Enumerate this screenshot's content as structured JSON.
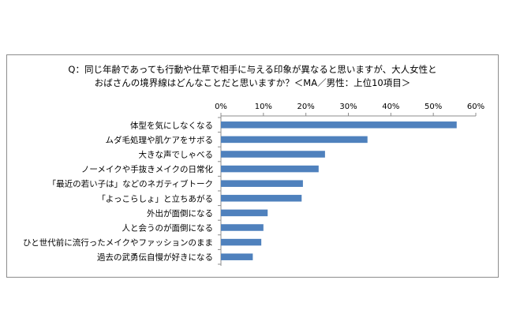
{
  "chart_data": {
    "type": "bar",
    "orientation": "horizontal",
    "title_line1": "Q：同じ年齢であっても行動や仕草で相手に与える印象が異なると思いますが、大人女性と",
    "title_line2": "おばさんの境界線はどんなことだと思いますか？＜MA／男性：上位10項目＞",
    "categories": [
      "体型を気にしなくなる",
      "ムダ毛処理や肌ケアをサボる",
      "大きな声でしゃべる",
      "ノーメイクや手抜きメイクの日常化",
      "「最近の若い子は」などのネガティブトーク",
      "「よっこらしょ」と立ちあがる",
      "外出が面倒になる",
      "人と会うのが面倒になる",
      "ひと世代前に流行ったメイクやファッションのまま",
      "過去の武勇伝自慢が好きになる"
    ],
    "values": [
      55.5,
      34.5,
      24.5,
      23.0,
      19.3,
      19.0,
      11.0,
      10.0,
      9.5,
      7.5
    ],
    "xlim": [
      0,
      60
    ],
    "ticks": [
      "0%",
      "10%",
      "20%",
      "30%",
      "40%",
      "50%",
      "60%"
    ],
    "tick_values": [
      0,
      10,
      20,
      30,
      40,
      50,
      60
    ],
    "bar_color": "#4f81bd",
    "axis_position": "top",
    "grid": false
  }
}
